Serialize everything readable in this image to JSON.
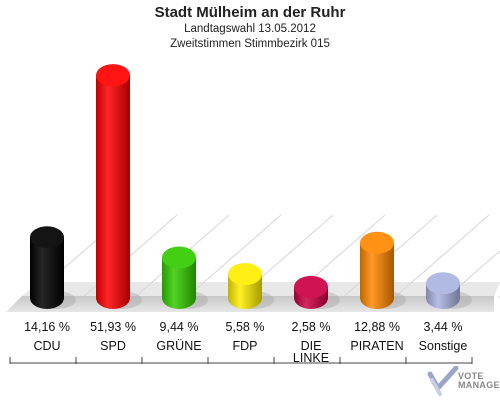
{
  "header": {
    "title": "Stadt Mülheim an der Ruhr",
    "subtitle1": "Landtagswahl 13.05.2012",
    "subtitle2": "Zweitstimmen Stimmbezirk 015"
  },
  "logo": {
    "line1": "VOTE",
    "line2": "MANAGER",
    "icon": "vote-checkmark-icon"
  },
  "chart_data": {
    "type": "bar",
    "title": "Stadt Mülheim an der Ruhr",
    "subtitle": [
      "Landtagswahl 13.05.2012",
      "Zweitstimmen Stimmbezirk 015"
    ],
    "categories": [
      [
        "CDU"
      ],
      [
        "SPD"
      ],
      [
        "GRÜNE"
      ],
      [
        "FDP"
      ],
      [
        "DIE",
        "LINKE"
      ],
      [
        "PIRATEN"
      ],
      [
        "Sonstige"
      ]
    ],
    "values": [
      14.16,
      51.93,
      9.44,
      5.58,
      2.58,
      12.88,
      3.44
    ],
    "value_labels": [
      "14,16 %",
      "51,93 %",
      "9,44 %",
      "5,58 %",
      "2,58 %",
      "12,88 %",
      "3,44 %"
    ],
    "colors": [
      "#000000",
      "#ff0000",
      "#33cc00",
      "#ffee00",
      "#cc0044",
      "#ff8800",
      "#aab4e0"
    ],
    "ylim": [
      0,
      55
    ],
    "grid": false,
    "legend": "none",
    "style": "3d-cylinder"
  }
}
